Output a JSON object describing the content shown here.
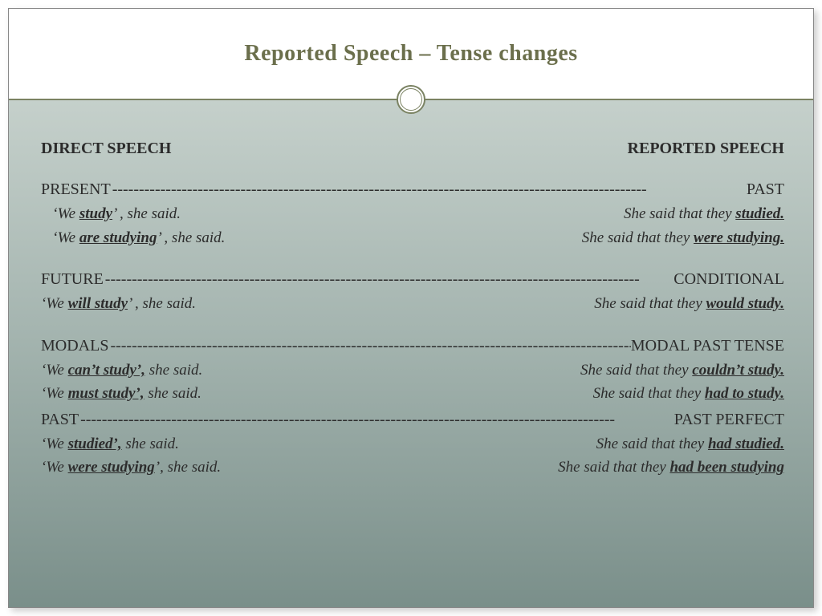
{
  "colors": {
    "title": "#6b6f4c",
    "divider": "#7a8262",
    "bg_top": "#c5d0cb",
    "bg_mid": "#a5b5b0",
    "bg_bot": "#7a8f8a",
    "text": "#2c2c2c"
  },
  "title": "Reported Speech – Tense changes",
  "headers": {
    "left": "DIRECT SPEECH",
    "right": "REPORTED SPEECH"
  },
  "sections": [
    {
      "left_label": "PRESENT",
      "right_label": "PAST",
      "examples": [
        {
          "direct_pre": "‘We ",
          "direct_verb": "study",
          "direct_post": "’ , she said.",
          "rep_pre": "She said that they ",
          "rep_verb": "studied.",
          "rep_post": ""
        },
        {
          "direct_pre": "‘We ",
          "direct_verb": "are studying",
          "direct_post": "’ , she said.",
          "rep_pre": "She said that they ",
          "rep_verb": "were studying.",
          "rep_post": ""
        }
      ]
    },
    {
      "left_label": "FUTURE",
      "right_label": "CONDITIONAL",
      "examples": [
        {
          "direct_pre": "‘We ",
          "direct_verb": "will study",
          "direct_post": "’ , she said.",
          "rep_pre": "She said that they ",
          "rep_verb": "would study.",
          "rep_post": ""
        }
      ]
    },
    {
      "left_label": "MODALS",
      "right_label": "MODAL PAST TENSE",
      "examples": [
        {
          "direct_pre": "‘We ",
          "direct_verb": "can’t study’,",
          "direct_post": " she said.",
          "rep_pre": "She said that they ",
          "rep_verb": "couldn’t study.",
          "rep_post": ""
        },
        {
          "direct_pre": "‘We ",
          "direct_verb": "must study’,",
          "direct_post": " she said.",
          "rep_pre": "She said that they ",
          "rep_verb": "had to study.",
          "rep_post": ""
        }
      ]
    },
    {
      "left_label": "PAST",
      "right_label": "PAST PERFECT",
      "examples": [
        {
          "direct_pre": "‘We ",
          "direct_verb": "studied’,",
          "direct_post": " she said.",
          "rep_pre": "She said that they ",
          "rep_verb": "had studied.",
          "rep_post": ""
        },
        {
          "direct_pre": "‘We ",
          "direct_verb": "were studying",
          "direct_post": "’, she said.",
          "rep_pre": "She said that they ",
          "rep_verb": "had been studying",
          "rep_post": ""
        }
      ]
    }
  ],
  "dash_fill": "----------------------------------------------------------------------------------------------------"
}
